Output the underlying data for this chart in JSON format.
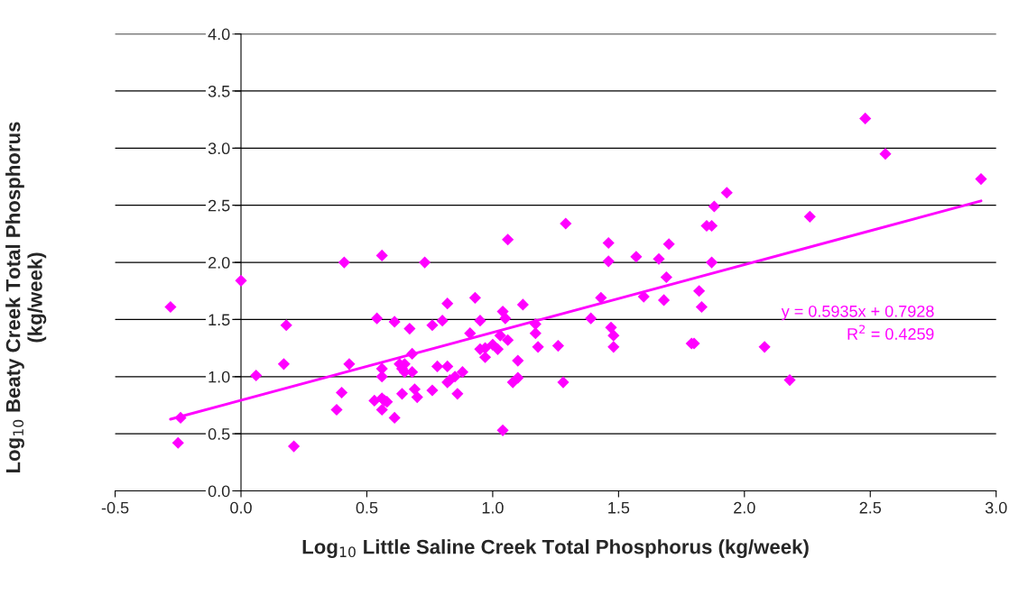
{
  "chart_data": {
    "type": "scatter",
    "xlabel": "Log$_{10}$ Little Saline Creek Total Phosphorus (kg/week)",
    "ylabel": "Log$_{10}$ Beaty Creek Total Phosphorus\n(kg/week)",
    "xlim": [
      -0.5,
      3.0
    ],
    "xticks": [
      -0.5,
      {
        "value": 0,
        "label": "0.0"
      },
      0.5,
      {
        "value": 1,
        "label": "1.0"
      },
      1.5,
      {
        "value": 2,
        "label": "2.0"
      },
      2.5,
      {
        "value": 3,
        "label": "3.0"
      }
    ],
    "ylim": [
      0.0,
      4.0
    ],
    "yticks": [
      {
        "value": 0,
        "label": "0.0"
      },
      0.5,
      {
        "value": 1,
        "label": "1.0"
      },
      1.5,
      {
        "value": 2,
        "label": "2.0"
      },
      2.5,
      {
        "value": 3,
        "label": "3.0"
      },
      3.5,
      {
        "value": 4,
        "label": "4.0"
      }
    ],
    "grid": "y",
    "marker": "diamond",
    "legend": false,
    "annotations": [
      "y = 0.5935x + 0.7928",
      "R$^{2}$ = 0.4259"
    ],
    "series": [
      {
        "type": "scatter",
        "color": "#ff00ff",
        "x": [
          -0.28,
          -0.25,
          -0.24,
          0.0,
          0.06,
          0.17,
          0.18,
          0.21,
          0.38,
          0.4,
          0.41,
          0.43,
          0.53,
          0.54,
          0.56,
          0.56,
          0.56,
          0.56,
          0.56,
          0.57,
          0.58,
          0.61,
          0.61,
          0.63,
          0.64,
          0.64,
          0.65,
          0.65,
          0.67,
          0.68,
          0.68,
          0.69,
          0.7,
          0.73,
          0.76,
          0.76,
          0.78,
          0.8,
          0.82,
          0.82,
          0.82,
          0.83,
          0.85,
          0.86,
          0.88,
          0.91,
          0.93,
          0.95,
          0.95,
          0.97,
          0.97,
          1.0,
          1.02,
          1.03,
          1.04,
          1.05,
          1.04,
          1.06,
          1.06,
          1.1,
          1.08,
          1.1,
          1.12,
          1.17,
          1.17,
          1.18,
          1.26,
          1.28,
          1.29,
          1.39,
          1.43,
          1.46,
          1.46,
          1.47,
          1.48,
          1.48,
          1.57,
          1.6,
          1.66,
          1.68,
          1.69,
          1.7,
          1.79,
          1.8,
          1.82,
          1.83,
          1.85,
          1.87,
          1.87,
          1.88,
          1.93,
          2.08,
          2.18,
          2.26,
          2.48,
          2.56,
          2.94
        ],
        "values": [
          1.61,
          0.42,
          0.64,
          1.84,
          1.01,
          1.11,
          1.45,
          0.39,
          0.71,
          0.86,
          2.0,
          1.11,
          0.79,
          1.51,
          2.06,
          1.07,
          1.0,
          0.81,
          0.71,
          0.79,
          0.78,
          1.48,
          0.64,
          1.11,
          1.07,
          0.85,
          1.11,
          1.04,
          1.42,
          1.2,
          1.04,
          0.89,
          0.82,
          2.0,
          1.45,
          0.88,
          1.09,
          1.49,
          1.64,
          0.95,
          1.09,
          0.97,
          1.0,
          0.85,
          1.04,
          1.38,
          1.69,
          1.24,
          1.49,
          1.25,
          1.17,
          1.28,
          1.24,
          1.36,
          1.57,
          1.51,
          0.53,
          1.32,
          2.2,
          1.14,
          0.95,
          0.99,
          1.63,
          1.46,
          1.38,
          1.26,
          1.27,
          0.95,
          2.34,
          1.51,
          1.69,
          2.17,
          2.01,
          1.43,
          1.36,
          1.26,
          2.05,
          1.7,
          2.03,
          1.67,
          1.87,
          2.16,
          1.29,
          1.29,
          1.75,
          1.61,
          2.32,
          2.32,
          2.0,
          2.49,
          2.61,
          1.26,
          0.97,
          2.4,
          3.26,
          2.95,
          2.73
        ]
      },
      {
        "type": "line",
        "color": "#ff00ff",
        "marker": "none",
        "x": [
          -0.28,
          2.94
        ],
        "values": [
          0.627,
          2.538
        ]
      }
    ]
  }
}
